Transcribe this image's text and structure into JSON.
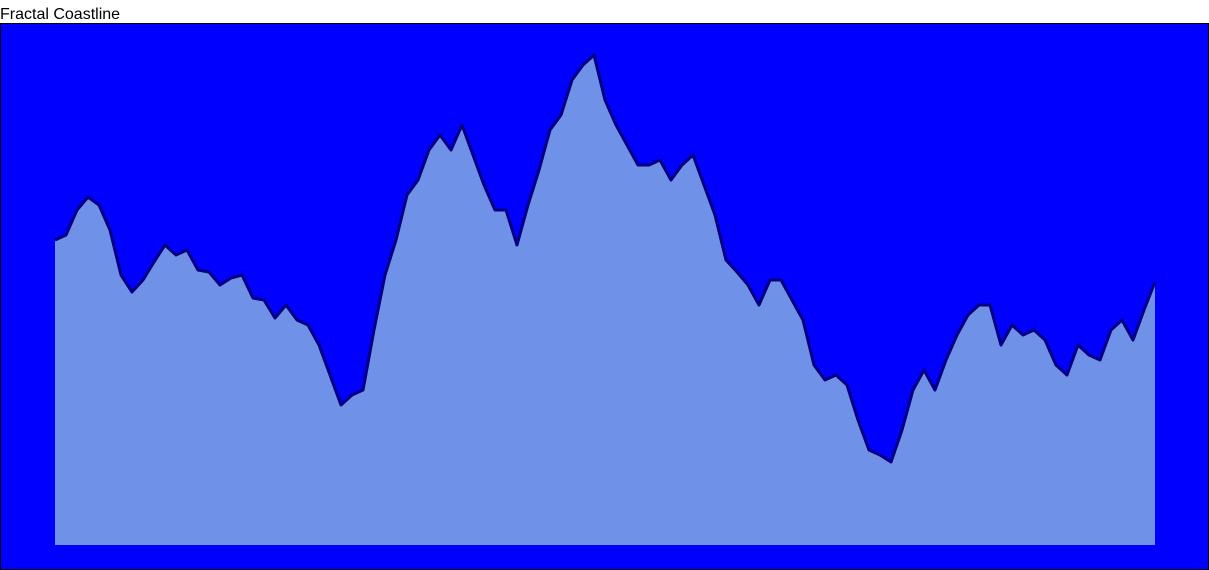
{
  "chart_data": {
    "type": "area",
    "title": "Fractal Coastline",
    "values": [
      305,
      310,
      335,
      348,
      340,
      315,
      270,
      253,
      265,
      283,
      300,
      290,
      295,
      275,
      273,
      260,
      267,
      270,
      247,
      245,
      227,
      240,
      225,
      220,
      200,
      170,
      140,
      150,
      155,
      215,
      270,
      305,
      350,
      365,
      395,
      410,
      395,
      420,
      390,
      360,
      335,
      335,
      300,
      340,
      375,
      415,
      430,
      465,
      480,
      490,
      445,
      420,
      400,
      380,
      380,
      385,
      365,
      380,
      390,
      360,
      330,
      285,
      273,
      260,
      240,
      265,
      265,
      245,
      225,
      180,
      165,
      170,
      160,
      125,
      95,
      90,
      83,
      115,
      155,
      175,
      155,
      185,
      210,
      230,
      240,
      240,
      200,
      220,
      210,
      215,
      205,
      180,
      170,
      200,
      190,
      185,
      215,
      225,
      205,
      235,
      263
    ],
    "color": "#6f92e8",
    "line_color": "#000080",
    "background": "#0000ff"
  }
}
